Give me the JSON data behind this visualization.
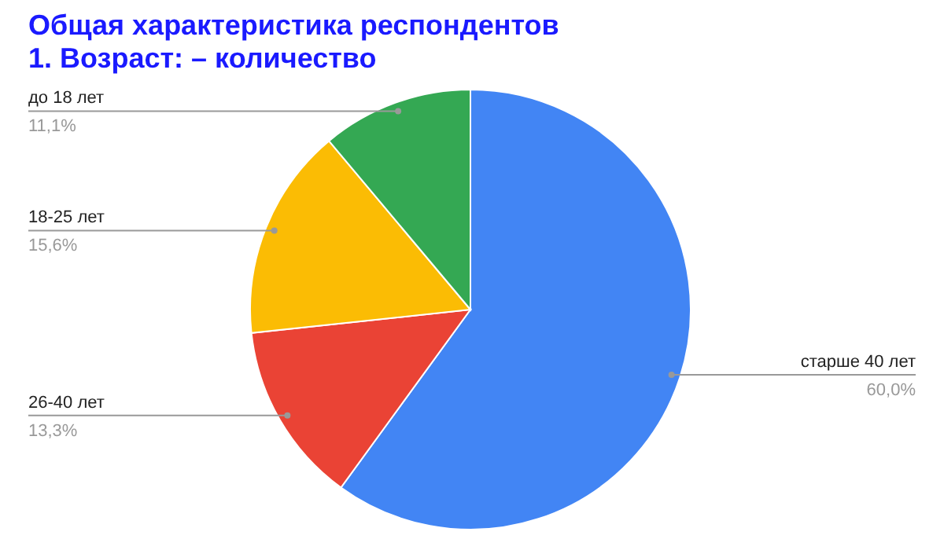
{
  "chart_data": {
    "type": "pie",
    "title": "Общая характеристика респондентов\n1. Возраст: – количество",
    "categories": [
      "старше 40 лет",
      "26-40 лет",
      "18-25 лет",
      "до 18 лет"
    ],
    "values": [
      60.0,
      13.3,
      15.6,
      11.1
    ],
    "colors": [
      "#4285f4",
      "#ea4335",
      "#fbbc04",
      "#34a853"
    ],
    "value_labels": [
      "60,0%",
      "13,3%",
      "15,6%",
      "11,1%"
    ]
  }
}
